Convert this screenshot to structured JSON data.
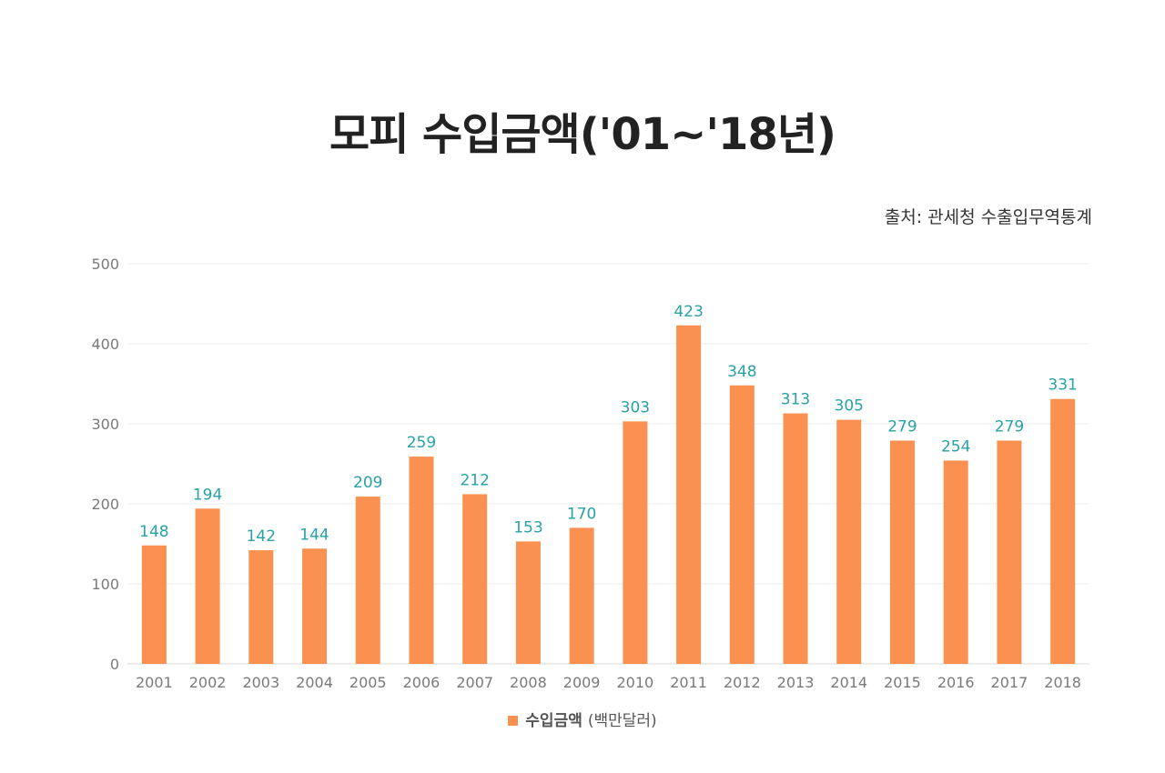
{
  "title": "모피 수입금액('01~'18년)",
  "source": "출처: 관세청 수출입무역통계",
  "colors": {
    "bar": "#fb9150",
    "data_label": "#27a2a6",
    "axis_text": "#7a7a7a",
    "grid": "#ececec"
  },
  "legend": {
    "name": "수입금액",
    "unit": "(백만달러)"
  },
  "chart_data": {
    "type": "bar",
    "categories": [
      "2001",
      "2002",
      "2003",
      "2004",
      "2005",
      "2006",
      "2007",
      "2008",
      "2009",
      "2010",
      "2011",
      "2012",
      "2013",
      "2014",
      "2015",
      "2016",
      "2017",
      "2018"
    ],
    "series": [
      {
        "name": "수입금액",
        "values": [
          148,
          194,
          142,
          144,
          209,
          259,
          212,
          153,
          170,
          303,
          423,
          348,
          313,
          305,
          279,
          254,
          279,
          331
        ]
      }
    ],
    "ylim": [
      0,
      500
    ],
    "yticks": [
      0,
      100,
      200,
      300,
      400,
      500
    ],
    "grid": true,
    "legend_position": "bottom-center"
  }
}
